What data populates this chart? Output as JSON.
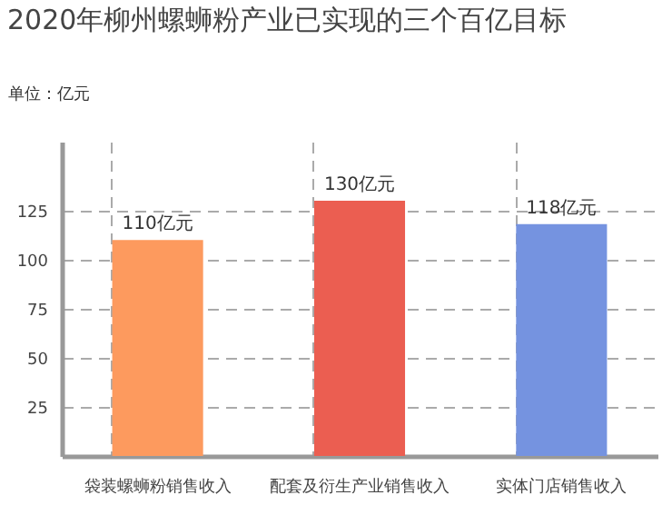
{
  "chart_data": {
    "type": "bar",
    "title": "2020年柳州螺蛳粉产业已实现的三个百亿目标",
    "ylabel": "单位：亿元",
    "categories": [
      "袋装螺蛳粉销售收入",
      "配套及衍生产业销售收入",
      "实体门店销售收入"
    ],
    "values": [
      110,
      130,
      118
    ],
    "colors": [
      "#fd9a5e",
      "#eb5e51",
      "#7593e0"
    ],
    "value_labels": [
      "110亿元",
      "130亿元",
      "118亿元"
    ],
    "ylim": [
      0,
      160
    ],
    "yticks": [
      25,
      50,
      75,
      100,
      125
    ],
    "grid": true
  }
}
